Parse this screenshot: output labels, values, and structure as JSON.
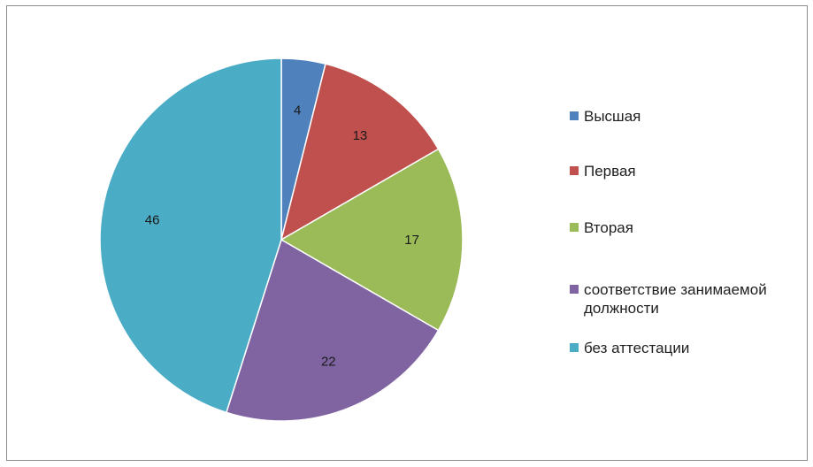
{
  "chart_data": {
    "type": "pie",
    "title": "",
    "slices": [
      {
        "label": "Высшая",
        "value": 4,
        "color": "#4f81bd"
      },
      {
        "label": "Первая",
        "value": 13,
        "color": "#c0504d"
      },
      {
        "label": "Вторая",
        "value": 17,
        "color": "#9bbb59"
      },
      {
        "label": "соответствие занимаемой должности",
        "value": 22,
        "color": "#8064a2"
      },
      {
        "label": "без аттестации",
        "value": 46,
        "color": "#4bacc6"
      }
    ],
    "legend_position": "right"
  }
}
